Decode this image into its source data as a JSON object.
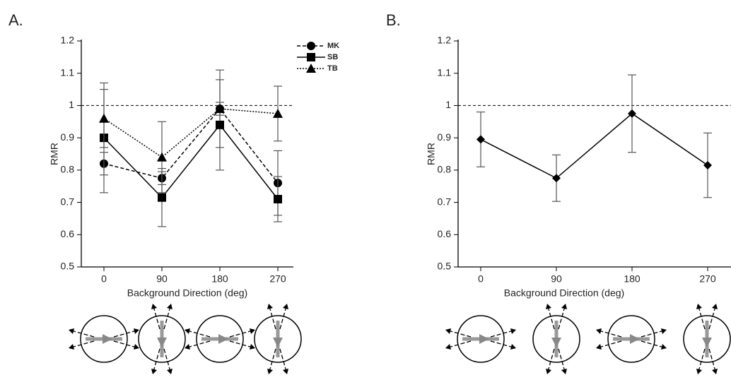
{
  "chart_data": [
    {
      "type": "line",
      "panel_label": "A.",
      "x_label": "Background Direction (deg)",
      "y_label": "RMR",
      "categories": [
        "0",
        "90",
        "180",
        "270"
      ],
      "ylim": [
        0.5,
        1.2
      ],
      "yticks": [
        0.5,
        0.6,
        0.7,
        0.8,
        0.9,
        1,
        1.1,
        1.2
      ],
      "hline": 1,
      "legend": "top-right",
      "series": [
        {
          "name": "MK",
          "color": "#000000",
          "line_style": "dashed",
          "marker": "circle",
          "values": [
            0.82,
            0.775,
            0.99,
            0.76
          ],
          "errors": [
            0.035,
            0.02,
            0.12,
            0.1
          ]
        },
        {
          "name": "SB",
          "color": "#000000",
          "line_style": "solid",
          "marker": "square",
          "values": [
            0.9,
            0.715,
            0.94,
            0.71
          ],
          "errors": [
            0.17,
            0.09,
            0.14,
            0.07
          ]
        },
        {
          "name": "TB",
          "color": "#000000",
          "line_style": "dotted",
          "marker": "triangle",
          "values": [
            0.96,
            0.84,
            0.99,
            0.975
          ],
          "errors": [
            0.09,
            0.11,
            0.02,
            0.085
          ]
        }
      ]
    },
    {
      "type": "line",
      "panel_label": "B.",
      "x_label": "Background Direction (deg)",
      "y_label": "RMR",
      "categories": [
        "0",
        "90",
        "180",
        "270"
      ],
      "ylim": [
        0.5,
        1.2
      ],
      "yticks": [
        0.5,
        0.6,
        0.7,
        0.8,
        0.9,
        1,
        1.1,
        1.2
      ],
      "hline": 1,
      "series": [
        {
          "color": "#000000",
          "line_style": "solid",
          "marker": "diamond",
          "values": [
            0.895,
            0.775,
            0.975,
            0.815
          ],
          "errors": [
            0.085,
            0.072,
            0.12,
            0.1
          ]
        }
      ]
    }
  ]
}
